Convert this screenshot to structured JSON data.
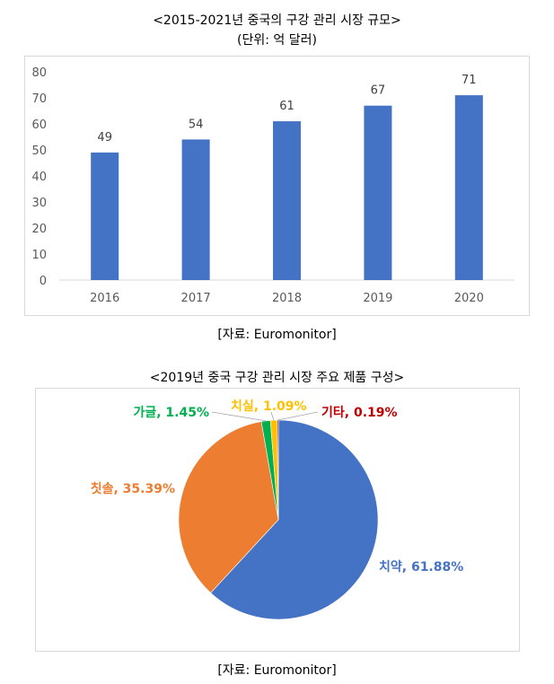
{
  "chart_data": [
    {
      "type": "bar",
      "title": "<2015-2021년 중국의 구강 관리 시장 규모>",
      "subtitle": "(단위: 억 달러)",
      "categories": [
        "2016",
        "2017",
        "2018",
        "2019",
        "2020"
      ],
      "values": [
        49,
        54,
        61,
        67,
        71
      ],
      "value_labels": [
        "49",
        "54",
        "61",
        "67",
        "71"
      ],
      "y_ticks": [
        "0",
        "10",
        "20",
        "30",
        "40",
        "50",
        "60",
        "70",
        "80"
      ],
      "ylim": [
        0,
        80
      ],
      "grid": false,
      "bar_color": "#4472c4",
      "source": "[자료: Euromonitor]"
    },
    {
      "type": "pie",
      "title": "<2019년 중국 구강 관리 시장 주요 제품 구성>",
      "slices": [
        {
          "label": "치약, 61.88%",
          "value": 61.88,
          "color": "#4472c4"
        },
        {
          "label": "칫솔, 35.39%",
          "value": 35.39,
          "color": "#ed7d31"
        },
        {
          "label": "가글, 1.45%",
          "value": 1.45,
          "color": "#00b050"
        },
        {
          "label": "치실, 1.09%",
          "value": 1.09,
          "color": "#ffc000"
        },
        {
          "label": "기타, 0.19%",
          "value": 0.19,
          "color": "#c00000"
        }
      ],
      "source": "[자료: Euromonitor]"
    }
  ]
}
